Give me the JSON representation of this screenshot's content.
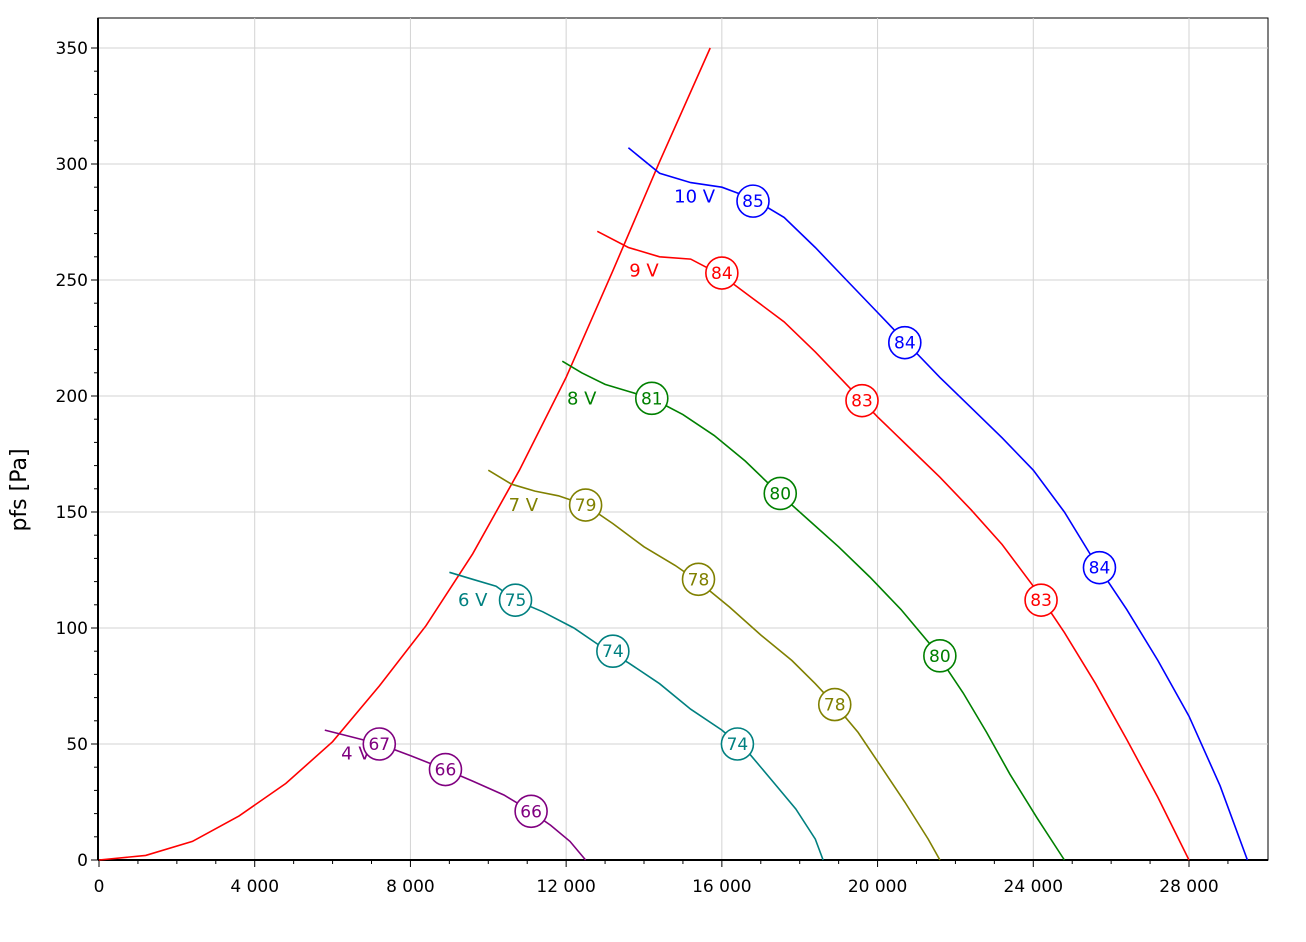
{
  "chart_data": {
    "type": "line",
    "title": "",
    "xlabel": "",
    "ylabel": "pfs [Pa]",
    "xlim": [
      0,
      30000
    ],
    "ylim": [
      0,
      350
    ],
    "grid": true,
    "x_ticks": [
      0,
      4000,
      8000,
      12000,
      16000,
      20000,
      24000,
      28000
    ],
    "x_tick_labels": [
      "0",
      "4 000",
      "8 000",
      "12 000",
      "16 000",
      "20 000",
      "24 000",
      "28 000"
    ],
    "y_ticks": [
      0,
      50,
      100,
      150,
      200,
      250,
      300,
      350
    ],
    "y_tick_labels": [
      "0",
      "50",
      "100",
      "150",
      "200",
      "250",
      "300",
      "350"
    ],
    "system_curve": {
      "color": "#ff0000",
      "points": [
        [
          0,
          0
        ],
        [
          1200,
          2
        ],
        [
          2400,
          8
        ],
        [
          3600,
          19
        ],
        [
          4800,
          33
        ],
        [
          6000,
          51
        ],
        [
          7200,
          75
        ],
        [
          8400,
          101
        ],
        [
          9600,
          132
        ],
        [
          10800,
          168
        ],
        [
          12000,
          208
        ],
        [
          13200,
          254
        ],
        [
          14400,
          301
        ],
        [
          15700,
          350
        ]
      ]
    },
    "series": [
      {
        "name": "10 V",
        "color": "#0000ff",
        "points": [
          [
            13600,
            307
          ],
          [
            14400,
            296
          ],
          [
            15200,
            292
          ],
          [
            16000,
            290
          ],
          [
            16800,
            285
          ],
          [
            17600,
            277
          ],
          [
            18400,
            264
          ],
          [
            19200,
            250
          ],
          [
            20000,
            236
          ],
          [
            20800,
            222
          ],
          [
            21600,
            208
          ],
          [
            22400,
            195
          ],
          [
            23200,
            182
          ],
          [
            24000,
            168
          ],
          [
            24800,
            150
          ],
          [
            25600,
            128
          ],
          [
            26400,
            108
          ],
          [
            27200,
            86
          ],
          [
            28000,
            62
          ],
          [
            28800,
            32
          ],
          [
            29500,
            0
          ]
        ],
        "markers": [
          {
            "x": 16800,
            "y": 284,
            "label": "85"
          },
          {
            "x": 20700,
            "y": 223,
            "label": "84"
          },
          {
            "x": 25700,
            "y": 126,
            "label": "84"
          }
        ],
        "label_x": 15300,
        "label_y": 286
      },
      {
        "name": "9 V",
        "color": "#ff0000",
        "points": [
          [
            12800,
            271
          ],
          [
            13600,
            264
          ],
          [
            14400,
            260
          ],
          [
            15200,
            259
          ],
          [
            16000,
            252
          ],
          [
            16800,
            242
          ],
          [
            17600,
            232
          ],
          [
            18400,
            219
          ],
          [
            19200,
            205
          ],
          [
            20000,
            191
          ],
          [
            20800,
            178
          ],
          [
            21600,
            165
          ],
          [
            22400,
            151
          ],
          [
            23200,
            136
          ],
          [
            24000,
            118
          ],
          [
            24800,
            98
          ],
          [
            25600,
            76
          ],
          [
            26400,
            52
          ],
          [
            27200,
            27
          ],
          [
            28000,
            0
          ]
        ],
        "markers": [
          {
            "x": 16000,
            "y": 253,
            "label": "84"
          },
          {
            "x": 19600,
            "y": 198,
            "label": "83"
          },
          {
            "x": 24200,
            "y": 112,
            "label": "83"
          }
        ],
        "label_x": 14000,
        "label_y": 254
      },
      {
        "name": "8 V",
        "color": "#008000",
        "points": [
          [
            11900,
            215
          ],
          [
            12400,
            210
          ],
          [
            13000,
            205
          ],
          [
            13600,
            202
          ],
          [
            14200,
            199
          ],
          [
            15000,
            192
          ],
          [
            15800,
            183
          ],
          [
            16600,
            172
          ],
          [
            17400,
            159
          ],
          [
            18200,
            147
          ],
          [
            19000,
            135
          ],
          [
            19800,
            122
          ],
          [
            20600,
            108
          ],
          [
            21400,
            92
          ],
          [
            22200,
            72
          ],
          [
            22800,
            55
          ],
          [
            23400,
            37
          ],
          [
            24100,
            18
          ],
          [
            24800,
            0
          ]
        ],
        "markers": [
          {
            "x": 14200,
            "y": 199,
            "label": "81"
          },
          {
            "x": 17500,
            "y": 158,
            "label": "80"
          },
          {
            "x": 21600,
            "y": 88,
            "label": "80"
          }
        ],
        "label_x": 12400,
        "label_y": 199
      },
      {
        "name": "7 V",
        "color": "#808000",
        "points": [
          [
            10000,
            168
          ],
          [
            10600,
            162
          ],
          [
            11200,
            159
          ],
          [
            11800,
            157
          ],
          [
            12500,
            153
          ],
          [
            13200,
            145
          ],
          [
            14000,
            135
          ],
          [
            14800,
            127
          ],
          [
            15400,
            120
          ],
          [
            16200,
            109
          ],
          [
            17000,
            97
          ],
          [
            17800,
            86
          ],
          [
            18400,
            76
          ],
          [
            18900,
            67
          ],
          [
            19500,
            55
          ],
          [
            20100,
            40
          ],
          [
            20700,
            25
          ],
          [
            21300,
            9
          ],
          [
            21600,
            0
          ]
        ],
        "markers": [
          {
            "x": 12500,
            "y": 153,
            "label": "79"
          },
          {
            "x": 15400,
            "y": 121,
            "label": "78"
          },
          {
            "x": 18900,
            "y": 67,
            "label": "78"
          }
        ],
        "label_x": 10900,
        "label_y": 153
      },
      {
        "name": "6 V",
        "color": "#008080",
        "points": [
          [
            9000,
            124
          ],
          [
            9600,
            121
          ],
          [
            10200,
            118
          ],
          [
            10700,
            112
          ],
          [
            11400,
            107
          ],
          [
            12200,
            100
          ],
          [
            12900,
            92
          ],
          [
            13600,
            85
          ],
          [
            14400,
            76
          ],
          [
            15200,
            65
          ],
          [
            16000,
            56
          ],
          [
            16700,
            46
          ],
          [
            17300,
            34
          ],
          [
            17900,
            22
          ],
          [
            18400,
            9
          ],
          [
            18600,
            0
          ]
        ],
        "markers": [
          {
            "x": 10700,
            "y": 112,
            "label": "75"
          },
          {
            "x": 13200,
            "y": 90,
            "label": "74"
          },
          {
            "x": 16400,
            "y": 50,
            "label": "74"
          }
        ],
        "label_x": 9600,
        "label_y": 112
      },
      {
        "name": "4 V",
        "color": "#800080",
        "points": [
          [
            5800,
            56
          ],
          [
            6500,
            53
          ],
          [
            7200,
            50
          ],
          [
            8000,
            45
          ],
          [
            8900,
            39
          ],
          [
            9600,
            34
          ],
          [
            10400,
            28
          ],
          [
            11000,
            22
          ],
          [
            11600,
            15
          ],
          [
            12100,
            8
          ],
          [
            12500,
            0
          ]
        ],
        "markers": [
          {
            "x": 7200,
            "y": 50,
            "label": "67"
          },
          {
            "x": 8900,
            "y": 39,
            "label": "66"
          },
          {
            "x": 11100,
            "y": 21,
            "label": "66"
          }
        ],
        "label_x": 6600,
        "label_y": 46
      }
    ]
  }
}
